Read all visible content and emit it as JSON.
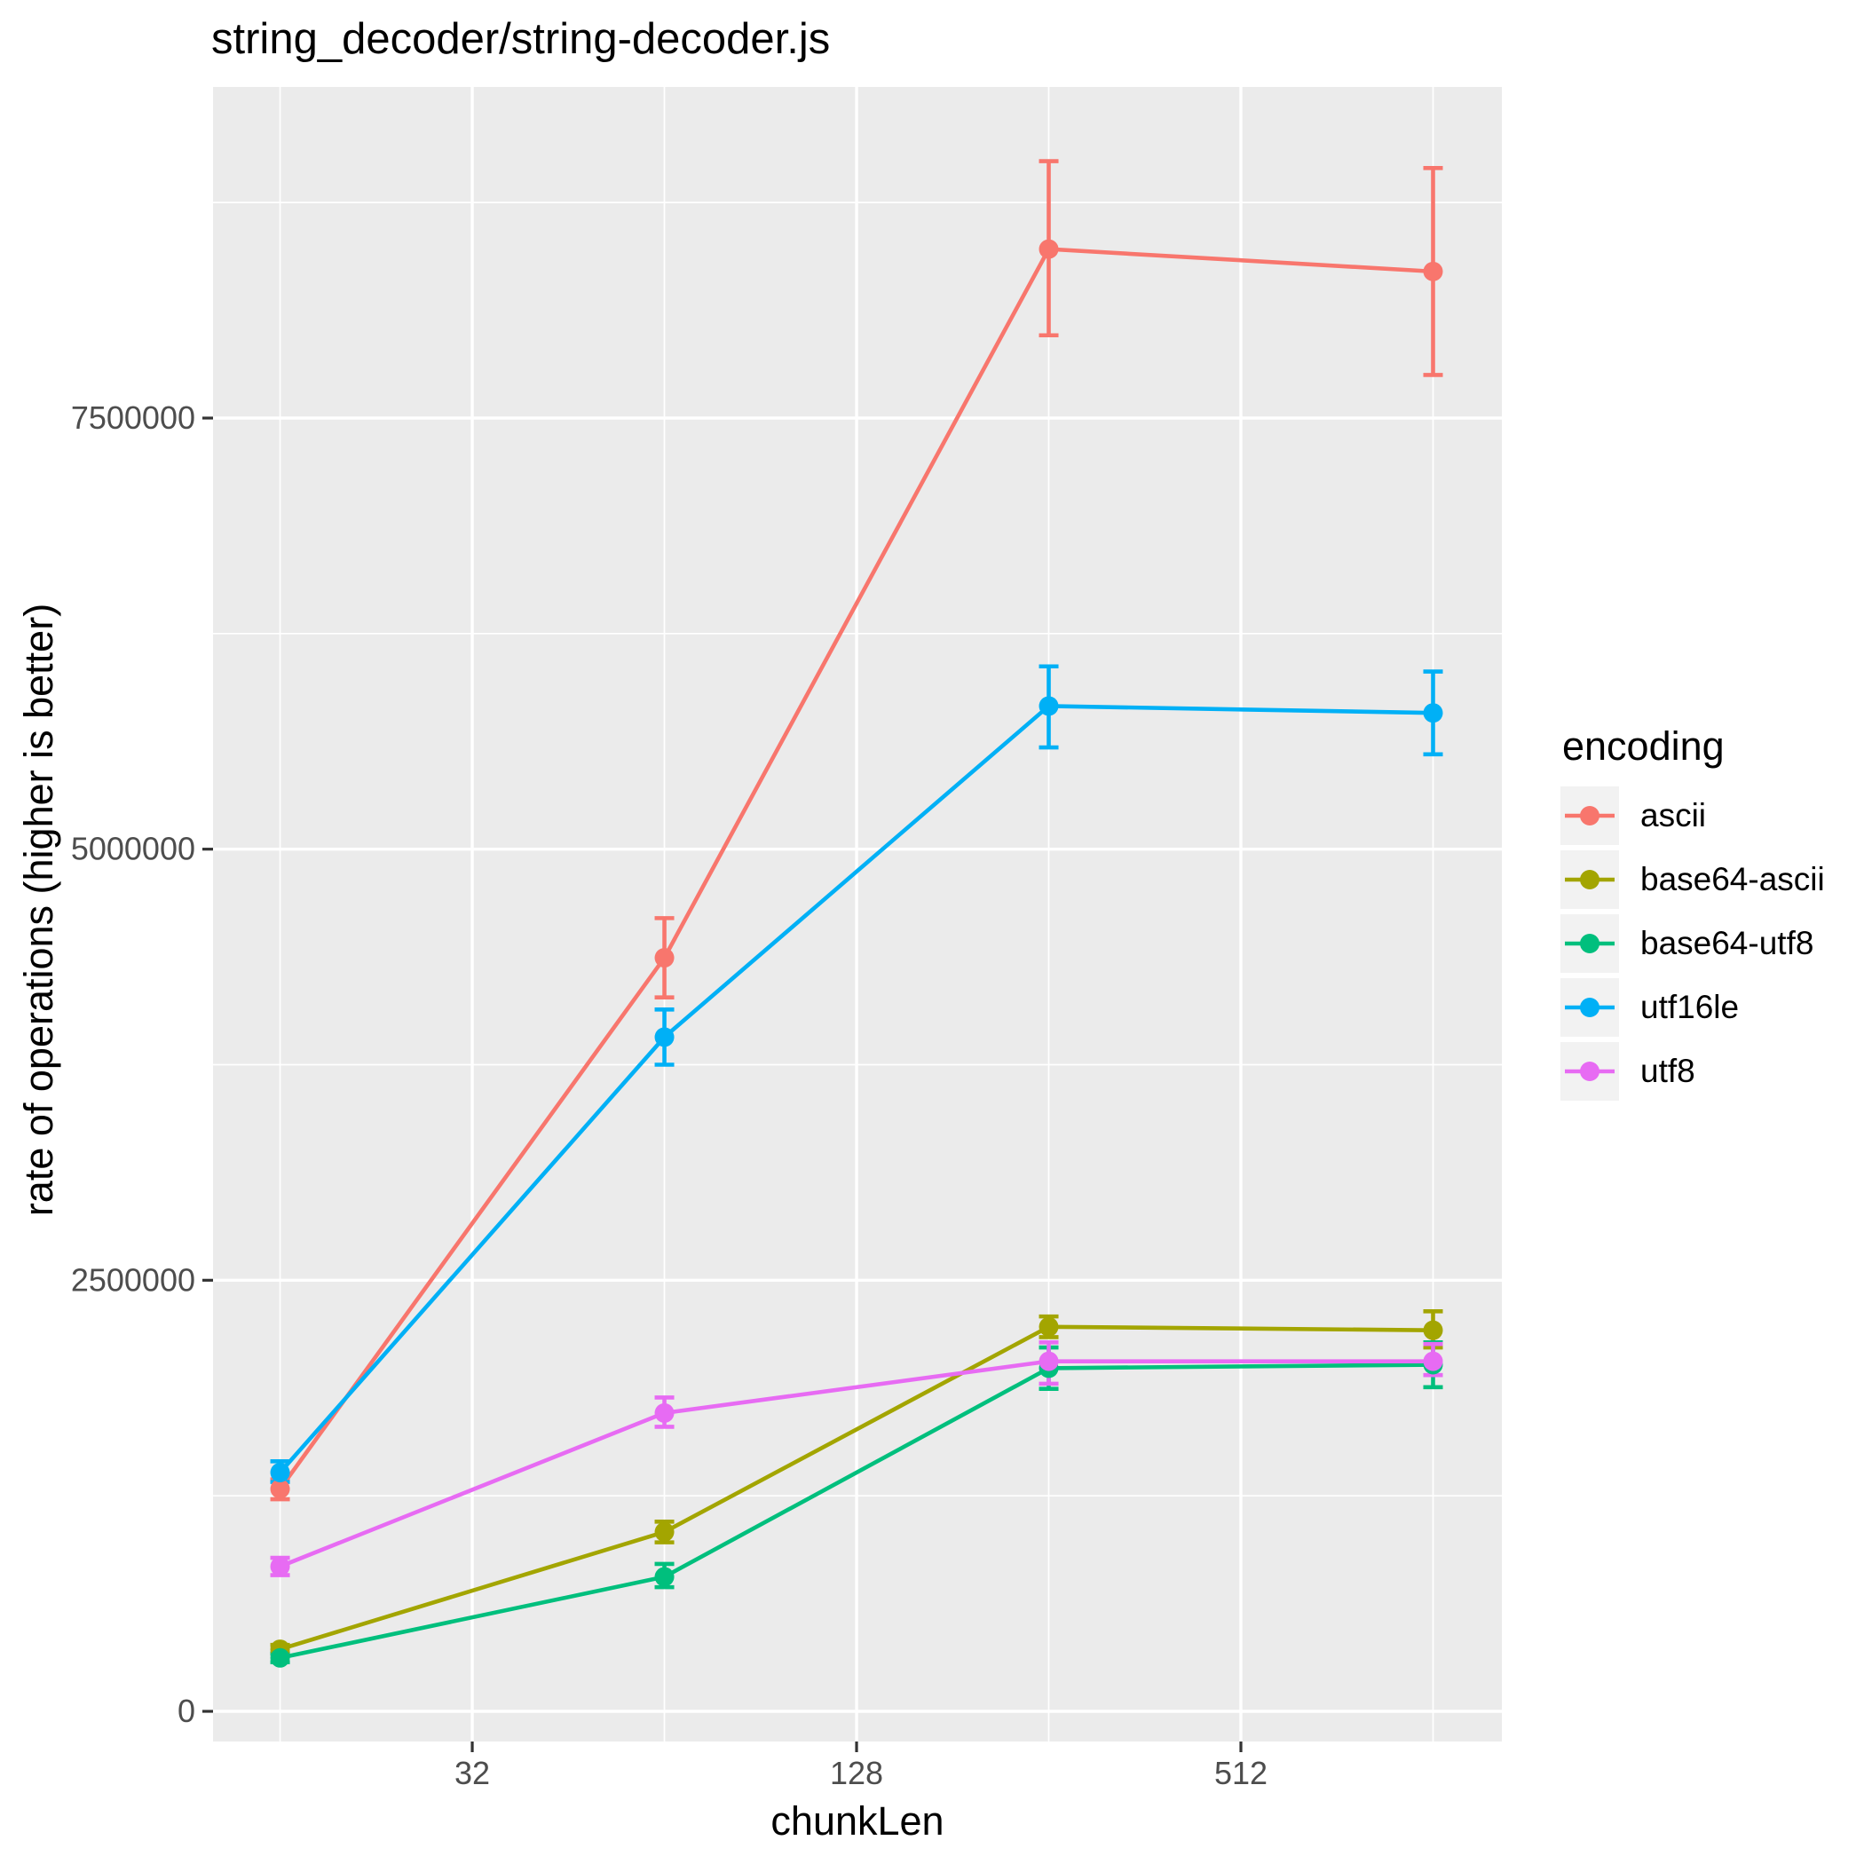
{
  "chart_data": {
    "type": "line",
    "title": "string_decoder/string-decoder.js",
    "xlabel": "chunkLen",
    "ylabel": "rate of operations (higher is better)",
    "x_scale": "log2",
    "x": [
      16,
      64,
      256,
      1024
    ],
    "x_tick_labels": [
      "32",
      "128",
      "512"
    ],
    "x_ticks": [
      32,
      128,
      512
    ],
    "x_minor_gridlines": [
      16,
      64,
      256,
      1024
    ],
    "y_ticks": [
      0,
      2500000,
      5000000,
      7500000
    ],
    "y_tick_labels": [
      "0",
      "2500000",
      "5000000",
      "7500000"
    ],
    "y_minor_gridlines": [
      1250000,
      3750000,
      6250000,
      8750000
    ],
    "xlim_log2": [
      3.651,
      10.358
    ],
    "ylim": [
      -175000,
      9420000
    ],
    "grid": true,
    "legend": {
      "title": "encoding",
      "position": "right"
    },
    "series": [
      {
        "name": "ascii",
        "color": "#F8766D",
        "values": [
          1290000,
          4370000,
          8480000,
          8350000
        ],
        "err_low": [
          1230000,
          4140000,
          7980000,
          7750000
        ],
        "err_high": [
          1345000,
          4600000,
          8990000,
          8950000
        ]
      },
      {
        "name": "base64-ascii",
        "color": "#A3A500",
        "values": [
          360000,
          1040000,
          2230000,
          2210000
        ],
        "err_low": [
          335000,
          980000,
          2170000,
          2110000
        ],
        "err_high": [
          385000,
          1100000,
          2290000,
          2320000
        ]
      },
      {
        "name": "base64-utf8",
        "color": "#00BF7D",
        "values": [
          310000,
          780000,
          1990000,
          2010000
        ],
        "err_low": [
          285000,
          720000,
          1870000,
          1880000
        ],
        "err_high": [
          335000,
          855000,
          2110000,
          2140000
        ]
      },
      {
        "name": "utf16le",
        "color": "#00B0F6",
        "values": [
          1385000,
          3910000,
          5830000,
          5790000
        ],
        "err_low": [
          1330000,
          3750000,
          5590000,
          5550000
        ],
        "err_high": [
          1450000,
          4070000,
          6060000,
          6030000
        ]
      },
      {
        "name": "utf8",
        "color": "#E76BF3",
        "values": [
          840000,
          1730000,
          2030000,
          2030000
        ],
        "err_low": [
          790000,
          1650000,
          1900000,
          1950000
        ],
        "err_high": [
          890000,
          1820000,
          2140000,
          2130000
        ]
      }
    ]
  },
  "colors": {
    "panel_bg": "#EBEBEB",
    "grid": "#FFFFFF",
    "tick_mark": "#333333",
    "tick_label": "#4D4D4D",
    "legend_key_bg": "#F2F2F2",
    "text": "#000000"
  }
}
